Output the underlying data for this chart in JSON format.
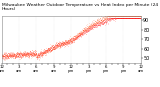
{
  "title": "Milwaukee Weather Outdoor Temperature",
  "subtitle": "vs Heat Index per Minute (24 Hours)",
  "dot_color_temp": "#ff0000",
  "dot_color_hi": "#ff4400",
  "background_color": "#ffffff",
  "ylim": [
    45,
    95
  ],
  "xlim": [
    0,
    1440
  ],
  "ylabel_fontsize": 3.5,
  "xlabel_fontsize": 2.8,
  "title_fontsize": 3.2,
  "dot_size": 0.5,
  "seed": 7,
  "grid_color": "#aaaaaa",
  "grid_alpha": 0.5
}
